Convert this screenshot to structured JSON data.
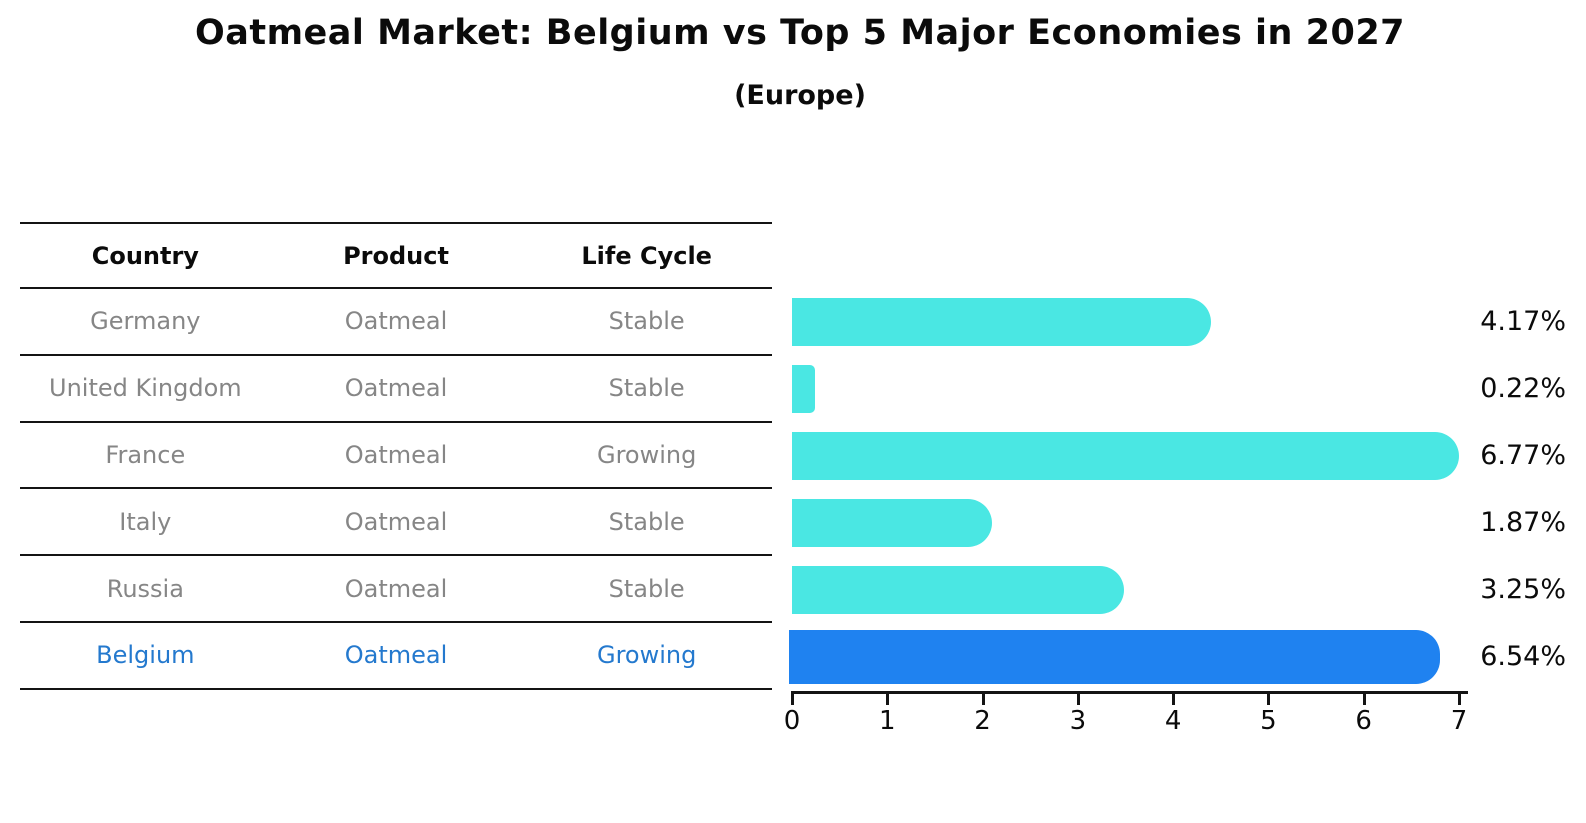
{
  "title": "Oatmeal Market: Belgium vs Top 5 Major Economies in 2027",
  "subtitle": "(Europe)",
  "table": {
    "headers": [
      "Country",
      "Product",
      "Life Cycle"
    ],
    "rows": [
      {
        "country": "Germany",
        "product": "Oatmeal",
        "life_cycle": "Stable",
        "highlight": false
      },
      {
        "country": "United Kingdom",
        "product": "Oatmeal",
        "life_cycle": "Stable",
        "highlight": false
      },
      {
        "country": "France",
        "product": "Oatmeal",
        "life_cycle": "Growing",
        "highlight": false
      },
      {
        "country": "Italy",
        "product": "Oatmeal",
        "life_cycle": "Stable",
        "highlight": false
      },
      {
        "country": "Russia",
        "product": "Oatmeal",
        "life_cycle": "Stable",
        "highlight": true,
        "highlight_country": "Belgium"
      }
    ]
  },
  "chart_data": {
    "type": "bar",
    "orientation": "horizontal",
    "title": "Oatmeal Market: Belgium vs Top 5 Major Economies in 2027",
    "subtitle": "(Europe)",
    "categories": [
      "Germany",
      "United Kingdom",
      "France",
      "Italy",
      "Russia",
      "Belgium"
    ],
    "values": [
      4.17,
      0.22,
      6.77,
      1.87,
      3.25,
      6.54
    ],
    "value_labels": [
      "4.17%",
      "0.22%",
      "6.77%",
      "1.87%",
      "3.25%",
      "6.54%"
    ],
    "life_cycles": [
      "Stable",
      "Stable",
      "Growing",
      "Stable",
      "Stable",
      "Growing"
    ],
    "product": "Oatmeal",
    "xlim": [
      0,
      7
    ],
    "x_ticks": [
      "0",
      "1",
      "2",
      "3",
      "4",
      "5",
      "6",
      "7"
    ],
    "grid": false,
    "legend": "none",
    "highlight_category": "Belgium",
    "bar_color": "#4ae7e3",
    "highlight_bar_color": "#1f82f0",
    "highlight_text_color": "#2479ce",
    "text_color": "#0b0b0b",
    "muted_text_color": "#868686"
  }
}
